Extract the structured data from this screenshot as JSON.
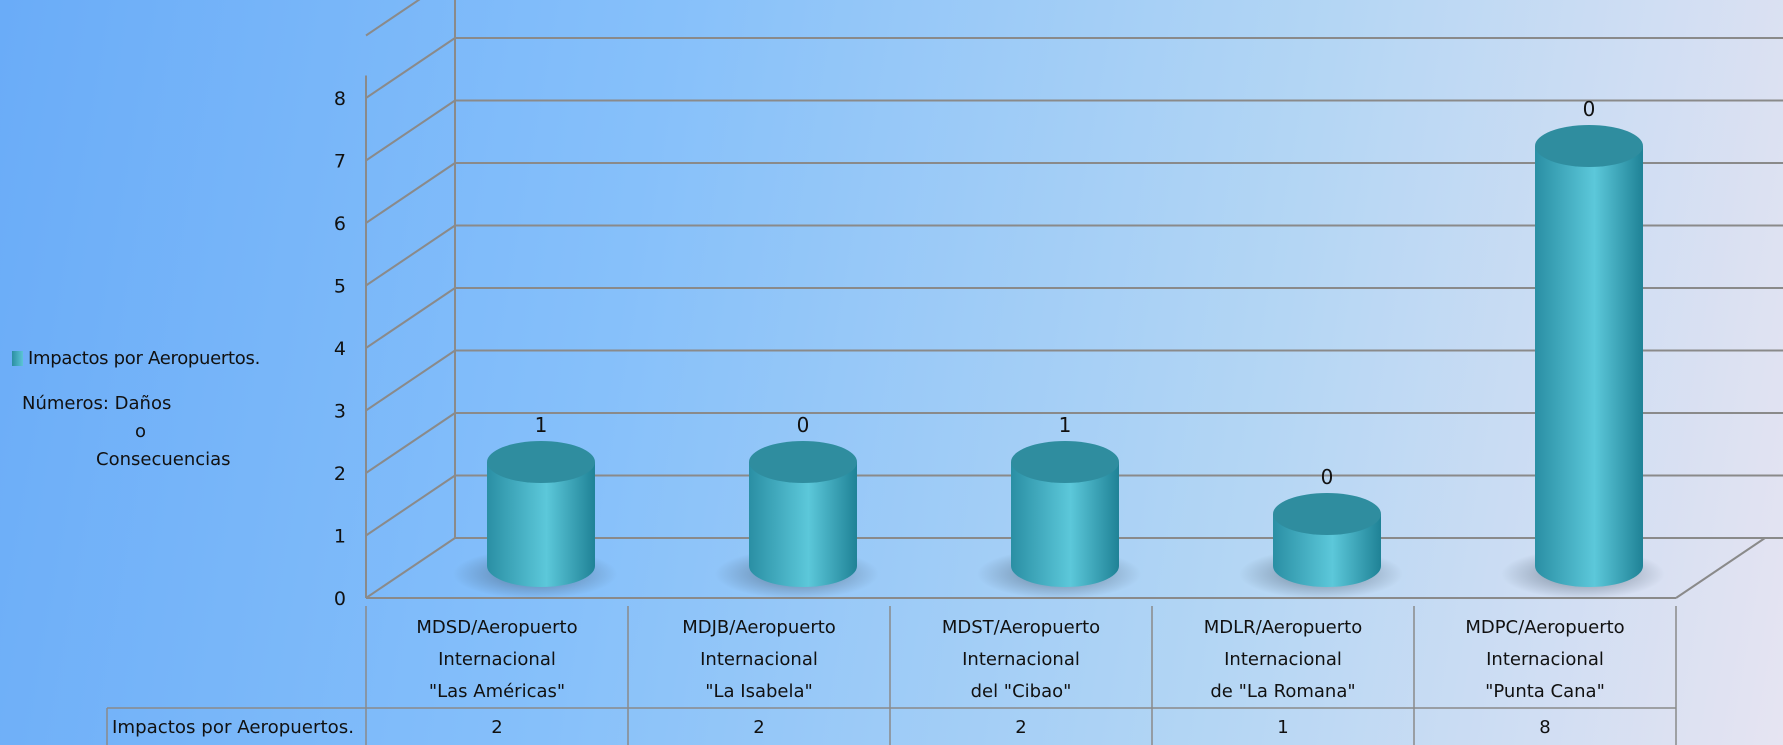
{
  "legend": {
    "series_label": "Impactos por Aeropuertos.",
    "note_line1": "Números: Daños",
    "note_line2": "o",
    "note_line3": "Consecuencias"
  },
  "colors": {
    "bar_light": "#5cc8da",
    "bar_dark": "#1f8296",
    "bar_top": "#2f8d9f",
    "grid": "#8a8a8a"
  },
  "chart_data": {
    "type": "bar",
    "style": "3d-cylinder",
    "categories": [
      [
        "MDSD/Aeropuerto",
        "Internacional",
        "\"Las Américas\""
      ],
      [
        "MDJB/Aeropuerto",
        "Internacional",
        "\"La Isabela\""
      ],
      [
        "MDST/Aeropuerto",
        "Internacional",
        "del \"Cibao\""
      ],
      [
        "MDLR/Aeropuerto",
        "Internacional",
        "de \"La Romana\""
      ],
      [
        "MDPC/Aeropuerto",
        "Internacional",
        "\"Punta Cana\""
      ]
    ],
    "series": [
      {
        "name": "Impactos por Aeropuertos.",
        "values": [
          2,
          2,
          2,
          1,
          8
        ]
      }
    ],
    "data_labels": [
      "1",
      "0",
      "1",
      "0",
      "0"
    ],
    "ylim": [
      0,
      8
    ],
    "yticks": [
      "0",
      "1",
      "2",
      "3",
      "4",
      "5",
      "6",
      "7",
      "8"
    ],
    "grid": true,
    "legend_position": "left",
    "data_table": {
      "row_label": "Impactos por Aeropuertos.",
      "values": [
        "2",
        "2",
        "2",
        "1",
        "8"
      ]
    }
  }
}
